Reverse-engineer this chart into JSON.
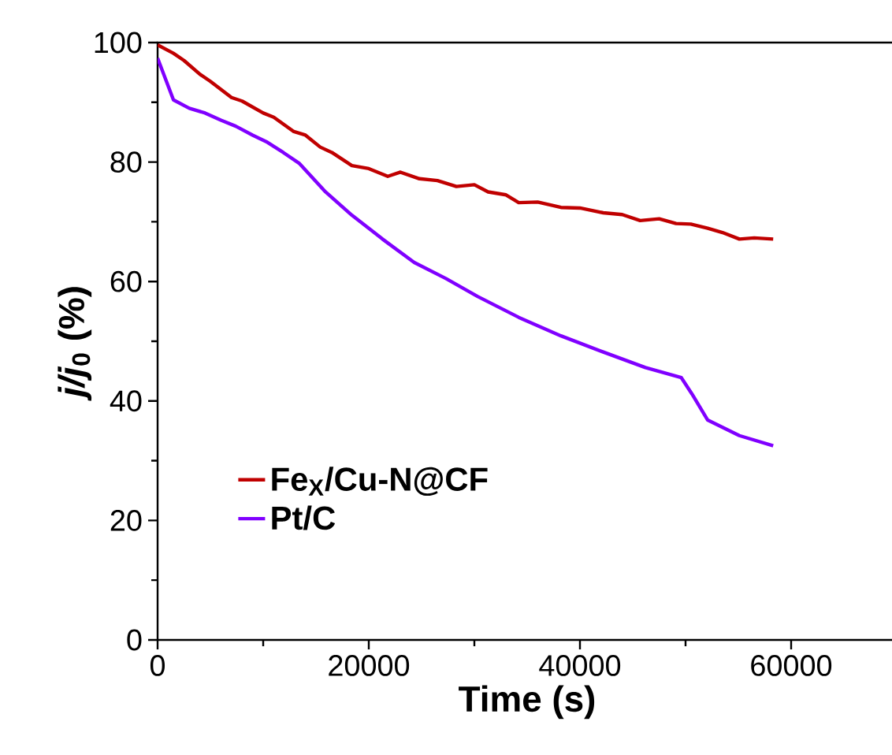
{
  "chart_data": {
    "type": "line",
    "xlabel": "Time (s)",
    "ylabel": "*j/j*$_{0}$ (%)",
    "xlim": [
      0,
      70000
    ],
    "ylim": [
      0,
      100
    ],
    "xticks": [
      0,
      20000,
      40000,
      60000
    ],
    "yticks": [
      0,
      20,
      40,
      60,
      80,
      100
    ],
    "legend": "bottom left",
    "grid": false,
    "marker": "none",
    "line_style": "solid",
    "series": [
      {
        "name": "Fe$_{X}$/Cu-N@CF",
        "color": "#c00000",
        "x": [
          0,
          1500,
          2500,
          4000,
          5000,
          7000,
          8000,
          10000,
          11000,
          12900,
          14000,
          15400,
          16500,
          18400,
          20000,
          21800,
          23000,
          24800,
          26500,
          28300,
          30000,
          31300,
          33000,
          34200,
          36000,
          38200,
          40000,
          42200,
          44000,
          45700,
          47500,
          49100,
          50500,
          52100,
          53500,
          55100,
          56500,
          58300
        ],
        "values": [
          99.6,
          98.2,
          97.0,
          94.7,
          93.5,
          90.8,
          90.2,
          88.2,
          87.5,
          85.1,
          84.5,
          82.5,
          81.6,
          79.4,
          78.9,
          77.6,
          78.3,
          77.2,
          76.9,
          75.9,
          76.2,
          75.0,
          74.5,
          73.2,
          73.3,
          72.4,
          72.3,
          71.5,
          71.2,
          70.2,
          70.5,
          69.7,
          69.6,
          68.9,
          68.2,
          67.1,
          67.3,
          67.1
        ]
      },
      {
        "name": "Pt/C",
        "color": "#8000ff",
        "x": [
          0,
          1500,
          3000,
          4500,
          6000,
          7400,
          9000,
          10400,
          11900,
          13400,
          15900,
          18400,
          21300,
          24300,
          27300,
          30300,
          34200,
          38200,
          42200,
          46200,
          49600,
          50600,
          52100,
          55100,
          58300
        ],
        "values": [
          97.4,
          90.4,
          89.0,
          88.2,
          87.0,
          86.0,
          84.5,
          83.3,
          81.6,
          79.8,
          75.0,
          71.1,
          67.1,
          63.2,
          60.5,
          57.5,
          54.0,
          50.9,
          48.2,
          45.6,
          43.9,
          41.2,
          36.8,
          34.2,
          32.5
        ]
      }
    ]
  }
}
